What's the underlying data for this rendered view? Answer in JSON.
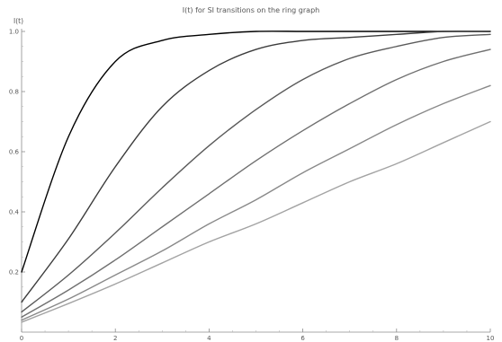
{
  "chart_data": {
    "type": "line",
    "title": "I(t) for SI transitions on the ring graph",
    "xlabel": "",
    "ylabel": "I(t)",
    "xlim": [
      0,
      10
    ],
    "ylim": [
      0,
      1.0
    ],
    "x_ticks": [
      0,
      2,
      4,
      6,
      8,
      10
    ],
    "y_ticks": [
      0.2,
      0.4,
      0.6,
      0.8,
      1.0
    ],
    "x_tick_labels": [
      "0",
      "2",
      "4",
      "6",
      "8",
      "10"
    ],
    "y_tick_labels": [
      "0.2",
      "0.4",
      "0.6",
      "0.8",
      "1.0"
    ],
    "grid": false,
    "series": [
      {
        "color": "#000000",
        "initial": 0.2,
        "values_x": [
          0,
          1,
          2,
          3,
          4,
          5,
          6,
          7,
          8,
          9,
          10
        ],
        "values": [
          0.2,
          0.65,
          0.9,
          0.97,
          0.99,
          1.0,
          1.0,
          1.0,
          1.0,
          1.0,
          1.0
        ]
      },
      {
        "color": "#3c3c3c",
        "initial": 0.1,
        "values_x": [
          0,
          1,
          2,
          3,
          4,
          5,
          6,
          7,
          8,
          9,
          10
        ],
        "values": [
          0.1,
          0.31,
          0.55,
          0.75,
          0.87,
          0.94,
          0.97,
          0.98,
          0.99,
          1.0,
          1.0
        ]
      },
      {
        "color": "#5a5a5a",
        "initial": 0.067,
        "values_x": [
          0,
          1,
          2,
          3,
          4,
          5,
          6,
          7,
          8,
          9,
          10
        ],
        "values": [
          0.067,
          0.19,
          0.33,
          0.48,
          0.62,
          0.74,
          0.84,
          0.91,
          0.95,
          0.98,
          0.99
        ]
      },
      {
        "color": "#707070",
        "initial": 0.05,
        "values_x": [
          0,
          1,
          2,
          3,
          4,
          5,
          6,
          7,
          8,
          9,
          10
        ],
        "values": [
          0.05,
          0.14,
          0.24,
          0.35,
          0.46,
          0.57,
          0.67,
          0.76,
          0.84,
          0.9,
          0.94
        ]
      },
      {
        "color": "#898989",
        "initial": 0.04,
        "values_x": [
          0,
          1,
          2,
          3,
          4,
          5,
          6,
          7,
          8,
          9,
          10
        ],
        "values": [
          0.04,
          0.11,
          0.19,
          0.27,
          0.36,
          0.44,
          0.53,
          0.61,
          0.69,
          0.76,
          0.82
        ]
      },
      {
        "color": "#a3a3a3",
        "initial": 0.033,
        "values_x": [
          0,
          1,
          2,
          3,
          4,
          5,
          6,
          7,
          8,
          9,
          10
        ],
        "values": [
          0.033,
          0.095,
          0.16,
          0.23,
          0.3,
          0.36,
          0.43,
          0.5,
          0.56,
          0.63,
          0.7
        ]
      }
    ]
  }
}
